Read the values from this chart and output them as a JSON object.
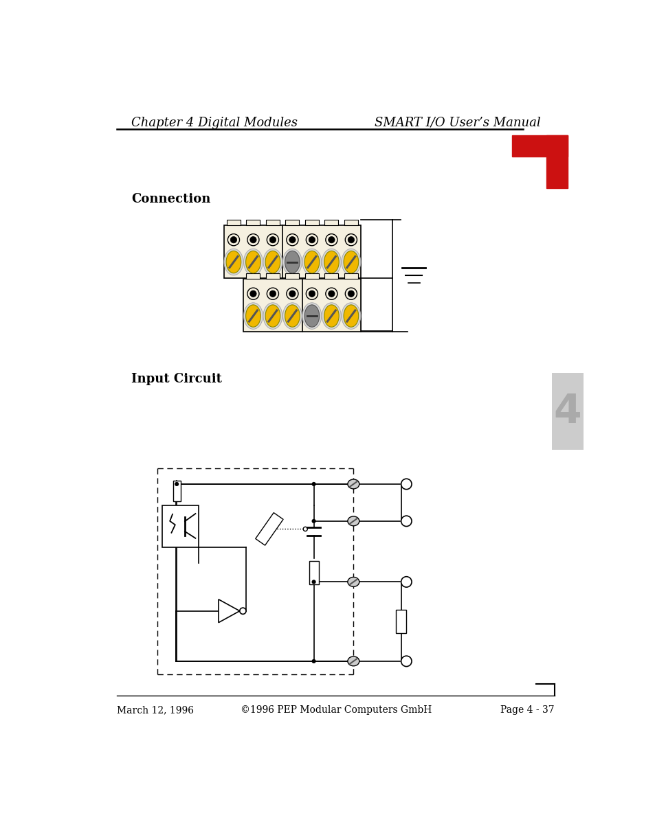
{
  "title_left": "Chapter 4 Digital Modules",
  "title_right": "SMART I/O User’s Manual",
  "section1": "Connection",
  "section2": "Input Circuit",
  "footer_left": "March 12, 1996",
  "footer_center": "©1996 PEP Modular Computers GmbH",
  "footer_right": "Page 4 - 37",
  "bg_color": "#ffffff",
  "text_color": "#000000",
  "red_color": "#cc1111",
  "yellow_color": "#f0b800",
  "gray_screw": "#888888",
  "cream_color": "#f5f0e0",
  "line_color": "#000000",
  "tab_gray": "#cccccc",
  "tab_num_color": "#aaaaaa"
}
